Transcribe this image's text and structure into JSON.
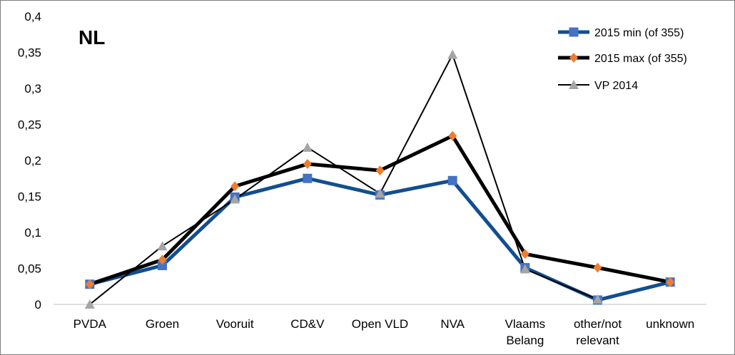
{
  "chart_data": {
    "type": "line",
    "title": "NL",
    "categories": [
      "PVDA",
      "Groen",
      "Vooruit",
      "CD&V",
      "Open VLD",
      "NVA",
      "Vlaams\nBelang",
      "other/not\nrelevant",
      "unknown"
    ],
    "ylim": [
      0,
      0.4
    ],
    "yticks": [
      "0",
      "0,05",
      "0,1",
      "0,15",
      "0,2",
      "0,25",
      "0,3",
      "0,35",
      "0,4"
    ],
    "ytick_values": [
      0,
      0.05,
      0.1,
      0.15,
      0.2,
      0.25,
      0.3,
      0.35,
      0.4
    ],
    "grid": false,
    "legend_position": "top-right",
    "series": [
      {
        "name": "2015 min (of 355)",
        "color": "#124e8f",
        "marker_color": "#4472c4",
        "marker": "square",
        "values": [
          0.028,
          0.054,
          0.149,
          0.175,
          0.152,
          0.172,
          0.051,
          0.006,
          0.031
        ]
      },
      {
        "name": "2015 max (of 355)",
        "color": "#000000",
        "marker_color": "#ed7d31",
        "marker": "diamond",
        "values": [
          0.028,
          0.062,
          0.164,
          0.195,
          0.186,
          0.234,
          0.07,
          0.051,
          0.031
        ]
      },
      {
        "name": "VP 2014",
        "color": "#000000",
        "marker_color": "#a5a5a5",
        "marker": "triangle",
        "values": [
          0.0,
          0.081,
          0.146,
          0.218,
          0.154,
          0.347,
          0.049,
          0.007,
          null
        ]
      }
    ]
  }
}
